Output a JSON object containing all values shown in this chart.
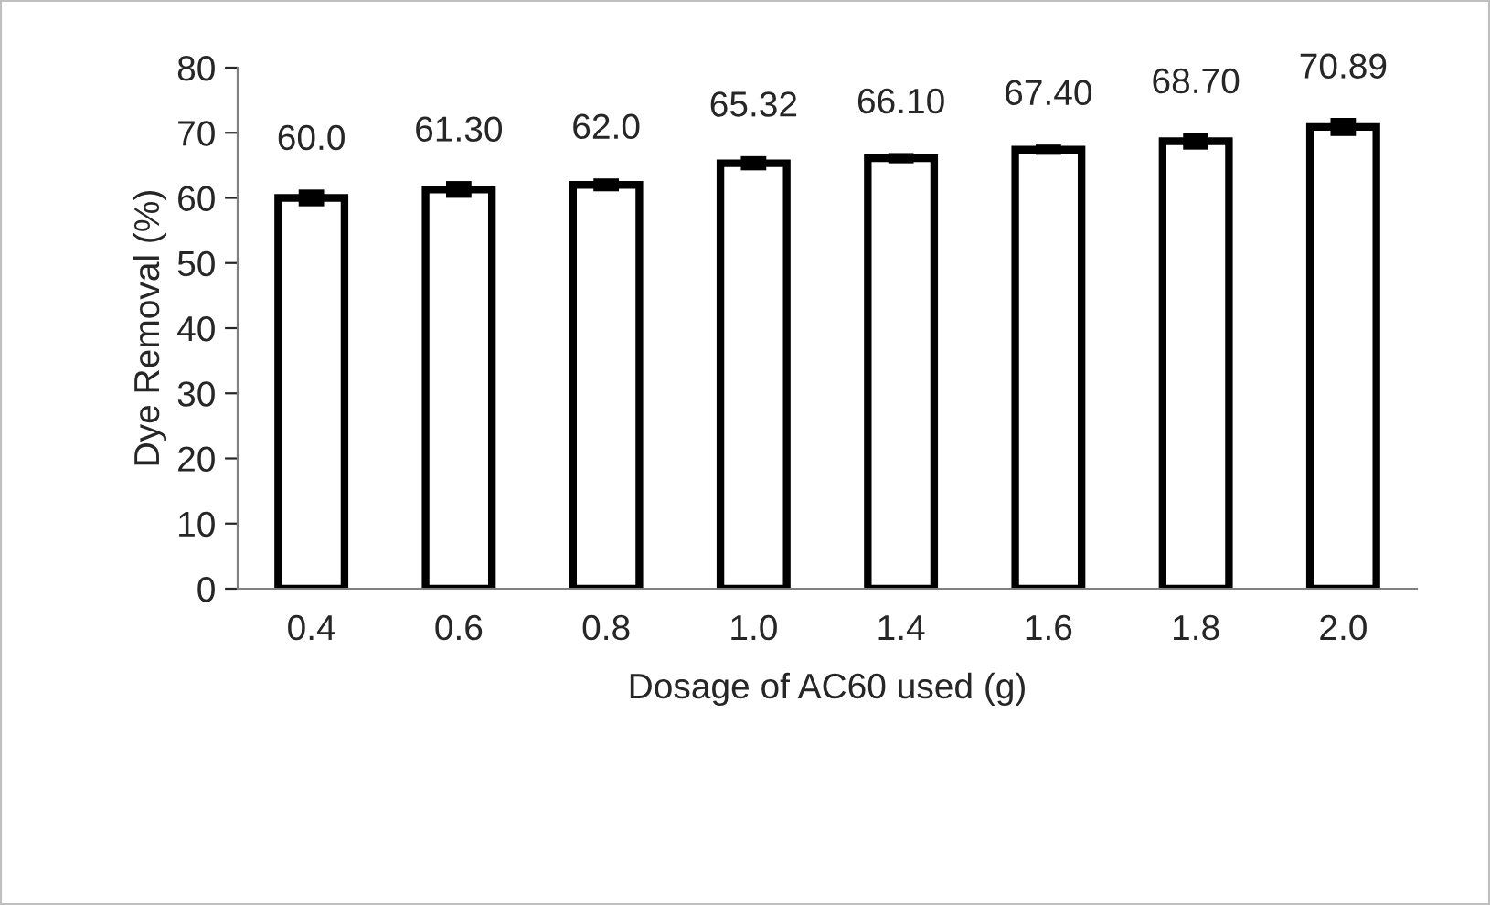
{
  "chart_data": {
    "type": "bar",
    "xlabel": "Dosage of AC60 used (g)",
    "ylabel": "Dye Removal (%)",
    "categories": [
      "0.4",
      "0.6",
      "0.8",
      "1.0",
      "1.4",
      "1.6",
      "1.8",
      "2.0"
    ],
    "values": [
      60.0,
      61.3,
      62.0,
      65.32,
      66.1,
      67.4,
      68.7,
      70.89
    ],
    "value_labels": [
      "60.0",
      "61.30",
      "62.0",
      "65.32",
      "66.10",
      "67.40",
      "68.70",
      "70.89"
    ],
    "errors": [
      0.8,
      0.8,
      0.5,
      0.6,
      0.3,
      0.3,
      0.8,
      0.9
    ],
    "color": "#ffffff",
    "ylim": [
      0,
      80
    ],
    "yticks": [
      0,
      10,
      20,
      30,
      40,
      50,
      60,
      70,
      80
    ],
    "grid": false,
    "legend": false
  }
}
